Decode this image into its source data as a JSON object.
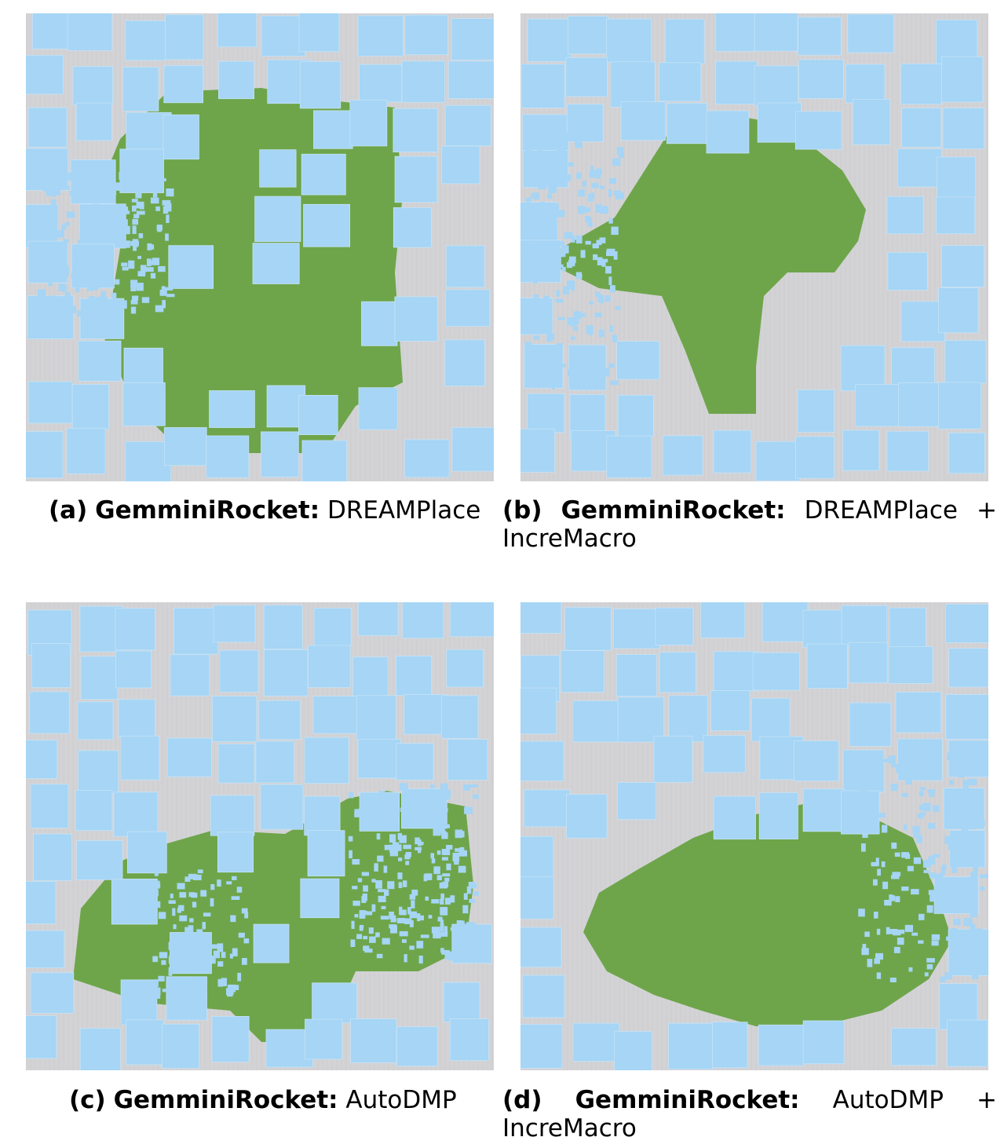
{
  "colors": {
    "macro": "#a6d5f5",
    "cells": "#6ea54a",
    "background": "#d3d3d6",
    "grid": "#bdbdc2"
  },
  "panels": [
    {
      "id": "a",
      "label": "(a)",
      "design": "GemminiRocket:",
      "method": "DREAMPlace",
      "suffix": ""
    },
    {
      "id": "b",
      "label": "(b)",
      "design": "GemminiRocket:",
      "method": "DREAMPlace",
      "suffix": "+",
      "line2": "IncreMacro"
    },
    {
      "id": "c",
      "label": "(c)",
      "design": "GemminiRocket:",
      "method": "AutoDMP",
      "suffix": ""
    },
    {
      "id": "d",
      "label": "(d)",
      "design": "GemminiRocket:",
      "method": "AutoDMP",
      "suffix": "+",
      "line2": "IncreMacro"
    }
  ]
}
